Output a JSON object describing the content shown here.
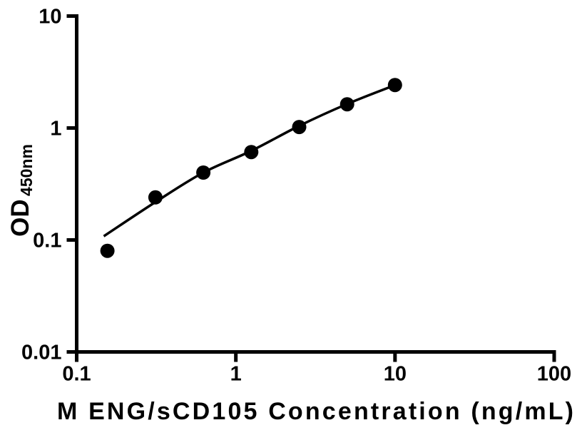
{
  "chart_data": {
    "type": "scatter",
    "title": "",
    "xlabel": "M ENG/sCD105 Concentration (ng/mL)",
    "ylabel_main": "OD",
    "ylabel_sub": "450nm",
    "xscale": "log",
    "yscale": "log",
    "xlim": [
      0.1,
      100
    ],
    "ylim": [
      0.01,
      10
    ],
    "x_tick_labels": [
      "0.1",
      "1",
      "10",
      "100"
    ],
    "y_tick_labels": [
      "10",
      "1",
      "0.1",
      "0.01"
    ],
    "grid": false,
    "legend": false,
    "series": [
      {
        "name": "standard-curve-points",
        "x": [
          0.156,
          0.3125,
          0.625,
          1.25,
          2.5,
          5,
          10
        ],
        "y": [
          0.08,
          0.24,
          0.4,
          0.61,
          1.02,
          1.63,
          2.42
        ]
      }
    ],
    "fit_curve": {
      "name": "fitted-curve",
      "x": [
        0.148,
        0.3125,
        0.625,
        1.25,
        2.5,
        5,
        10
      ],
      "y": [
        0.108,
        0.218,
        0.4,
        0.625,
        1.045,
        1.64,
        2.415
      ]
    },
    "marker_color": "#000000",
    "line_color": "#000000",
    "axis_color": "#000000",
    "background": "#ffffff"
  }
}
